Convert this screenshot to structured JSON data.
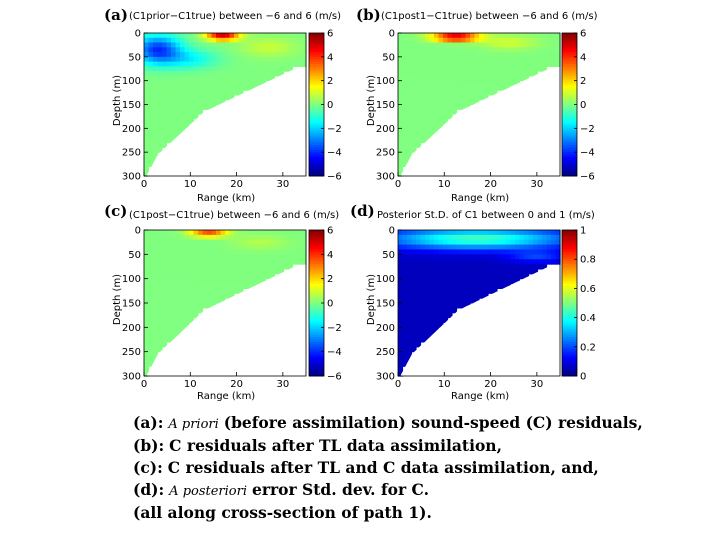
{
  "chart_data": [
    {
      "type": "heatmap",
      "panel": "(a)",
      "title": "(C1prior−C1true) between −6 and 6 (m/s)",
      "xlabel": "Range (km)",
      "ylabel": "Depth (m)",
      "xlim": [
        0,
        35
      ],
      "ylim": [
        300,
        0
      ],
      "xticks": [
        0,
        10,
        20,
        30
      ],
      "yticks": [
        0,
        50,
        100,
        150,
        200,
        250,
        300
      ],
      "colorbar": {
        "min": -6,
        "max": 6,
        "ticks": [
          6,
          4,
          2,
          0,
          -2,
          -4,
          -6
        ]
      },
      "features": [
        "strong positive anomaly ~+6 near 17 km, 0-15 m",
        "negative region ~-4 at 0-8 km, 0-60 m"
      ]
    },
    {
      "type": "heatmap",
      "panel": "(b)",
      "title": "(C1post1−C1true) between −6 and 6 (m/s)",
      "xlabel": "Range (km)",
      "ylabel": "Depth (m)",
      "xlim": [
        0,
        35
      ],
      "ylim": [
        300,
        0
      ],
      "xticks": [
        0,
        10,
        20,
        30
      ],
      "yticks": [
        0,
        50,
        100,
        150,
        200,
        250,
        300
      ],
      "colorbar": {
        "min": -6,
        "max": 6,
        "ticks": [
          6,
          4,
          2,
          0,
          -2,
          -4,
          -6
        ]
      },
      "features": [
        "positive anomaly ~+6 near 12 km, 0-20 m"
      ]
    },
    {
      "type": "heatmap",
      "panel": "(c)",
      "title": "(C1post−C1true) between −6 and 6 (m/s)",
      "xlabel": "Range (km)",
      "ylabel": "Depth (m)",
      "xlim": [
        0,
        35
      ],
      "ylim": [
        300,
        0
      ],
      "xticks": [
        0,
        10,
        20,
        30
      ],
      "yticks": [
        0,
        50,
        100,
        150,
        200,
        250,
        300
      ],
      "colorbar": {
        "min": -6,
        "max": 6,
        "ticks": [
          6,
          4,
          2,
          0,
          -2,
          -4,
          -6
        ]
      },
      "features": [
        "moderate positive anomaly ~+5 near 14 km, 0-15 m"
      ]
    },
    {
      "type": "heatmap",
      "panel": "(d)",
      "title": "Posterior St.D. of C1 between 0 and 1 (m/s)",
      "xlabel": "Range (km)",
      "ylabel": "Depth (m)",
      "xlim": [
        0,
        35
      ],
      "ylim": [
        300,
        0
      ],
      "xticks": [
        0,
        10,
        20,
        30
      ],
      "yticks": [
        0,
        50,
        100,
        150,
        200,
        250,
        300
      ],
      "colorbar": {
        "min": 0,
        "max": 1,
        "ticks": [
          1,
          0.8,
          0.6,
          0.4,
          0.2,
          0
        ]
      },
      "features": [
        "higher std (~0.4) near surface 0-60 m",
        "low std (~0) at depth"
      ]
    }
  ],
  "caption": {
    "a_label": "(a):",
    "a_italic": "A priori",
    "a_text": "(before assimilation) sound-speed (C) residuals,",
    "b_label": "(b):",
    "b_text": "C residuals after TL data assimilation,",
    "c_label": "(c):",
    "c_text": "C residuals after TL and C data assimilation, and,",
    "d_label": "(d):",
    "d_italic": "A posteriori",
    "d_text": "error Std. dev. for C.",
    "e_text": "(all along cross-section of path 1)."
  }
}
